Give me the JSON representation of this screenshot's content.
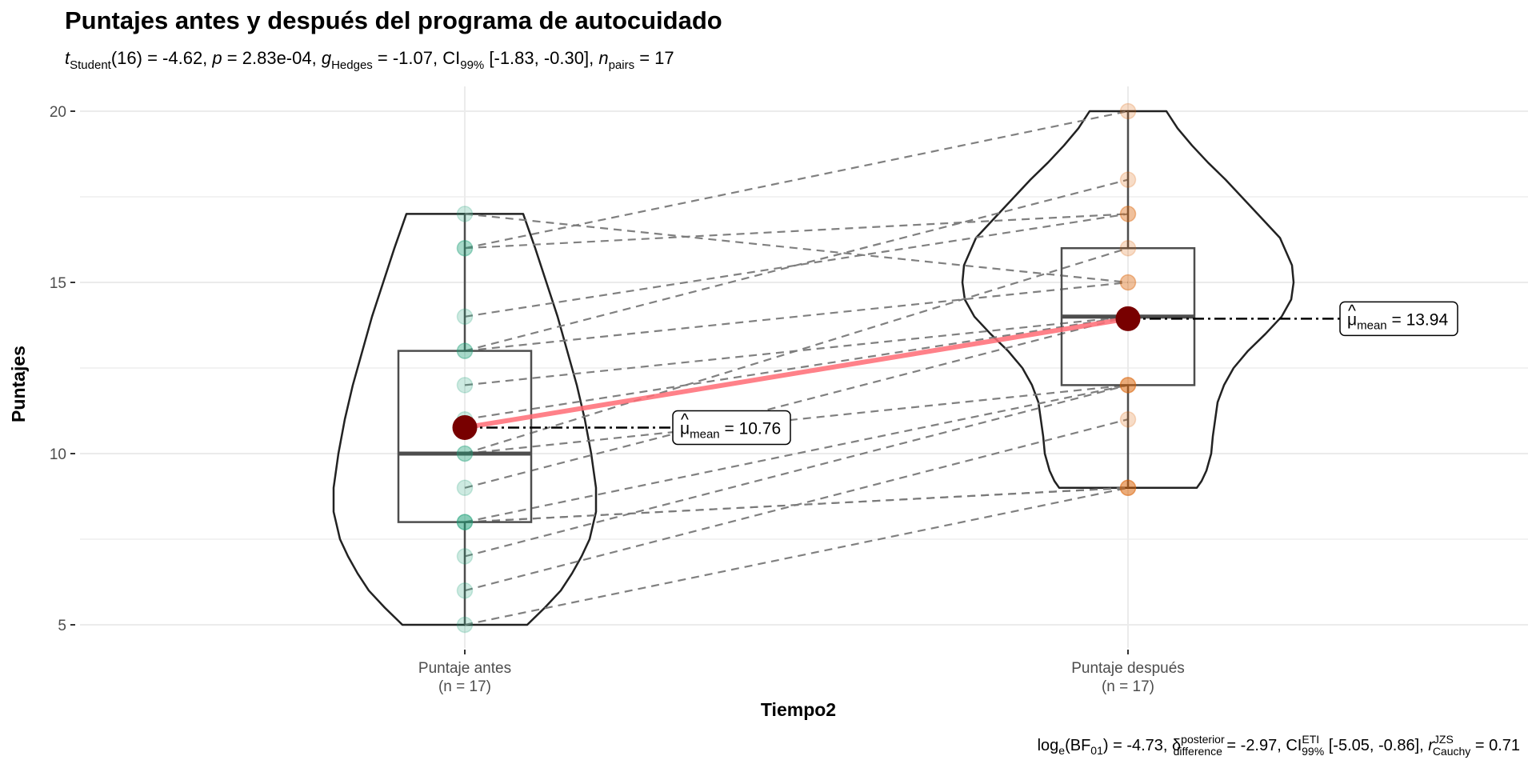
{
  "chart_data": {
    "type": "violin-box-paired",
    "title": "Puntajes antes y después del programa de autocuidado",
    "subtitle": {
      "t_label": "t",
      "t_sub": "Student",
      "t_value": "(16) = -4.62, ",
      "p_label": "p",
      "p_value": " = 2.83e-04, ",
      "g_label": "g",
      "g_sub": "Hedges",
      "g_value": " = -1.07, CI",
      "ci_sub": "99%",
      "ci_value": " [-1.83, -0.30], ",
      "n_label": "n",
      "n_sub": "pairs",
      "n_value": " = 17"
    },
    "caption": {
      "log_label": "log",
      "log_sub": "e",
      "bf_open": "(BF",
      "bf_sub": "01",
      "bf_value": ") = -4.73, ",
      "delta_label": "δ",
      "delta_sup": "posterior",
      "delta_sub": "difference",
      "delta_value": " = -2.97, CI",
      "ci_sup": "ETI",
      "ci_sub": "99%",
      "ci_value": " [-5.05, -0.86], ",
      "r_label": "r",
      "r_sup": "JZS",
      "r_sub": "Cauchy",
      "r_value": " = 0.71"
    },
    "xlabel": "Tiempo2",
    "ylabel": "Puntajes",
    "ylim": [
      4.2,
      20.7
    ],
    "yticks": [
      5,
      10,
      15,
      20
    ],
    "ytick_labels": [
      "5",
      "10",
      "15",
      "20"
    ],
    "grid": true,
    "categories": [
      {
        "name": "Puntaje antes",
        "n_label": "(n = 17)",
        "color": "#1b9e77",
        "values": [
          17,
          16,
          16,
          14,
          13,
          13,
          12,
          11,
          10,
          10,
          9,
          8,
          8,
          8,
          7,
          6,
          5
        ],
        "box": {
          "q1": 8,
          "median": 10,
          "q3": 13,
          "min": 5,
          "max": 17
        },
        "mean": 10.76,
        "mean_label_mu": "μ",
        "mean_label_sub": "mean",
        "mean_label_value": " = 10.76"
      },
      {
        "name": "Puntaje después",
        "n_label": "(n = 17)",
        "color": "#d95f02",
        "values": [
          15,
          20,
          17,
          17,
          15,
          18,
          14,
          14,
          16,
          12,
          14,
          9,
          12,
          9,
          12,
          11,
          9
        ],
        "box": {
          "q1": 12,
          "median": 14,
          "q3": 16,
          "min": 9,
          "max": 20
        },
        "mean": 13.94,
        "mean_label_mu": "μ",
        "mean_label_sub": "mean",
        "mean_label_value": " = 13.94"
      }
    ],
    "pairs": [
      [
        17,
        15
      ],
      [
        16,
        20
      ],
      [
        16,
        17
      ],
      [
        14,
        17
      ],
      [
        13,
        15
      ],
      [
        13,
        18
      ],
      [
        12,
        14
      ],
      [
        11,
        14
      ],
      [
        10,
        16
      ],
      [
        10,
        12
      ],
      [
        9,
        14
      ],
      [
        8,
        9
      ],
      [
        8,
        12
      ],
      [
        8,
        9
      ],
      [
        7,
        12
      ],
      [
        6,
        11
      ],
      [
        5,
        9
      ]
    ],
    "colors": {
      "mean_point": "#780000",
      "mean_line": "#ff6b74",
      "violin_stroke": "#222222",
      "box_stroke": "#4d4d4d",
      "pair_line": "#7a7a7a",
      "grid": "#ebebeb"
    }
  }
}
